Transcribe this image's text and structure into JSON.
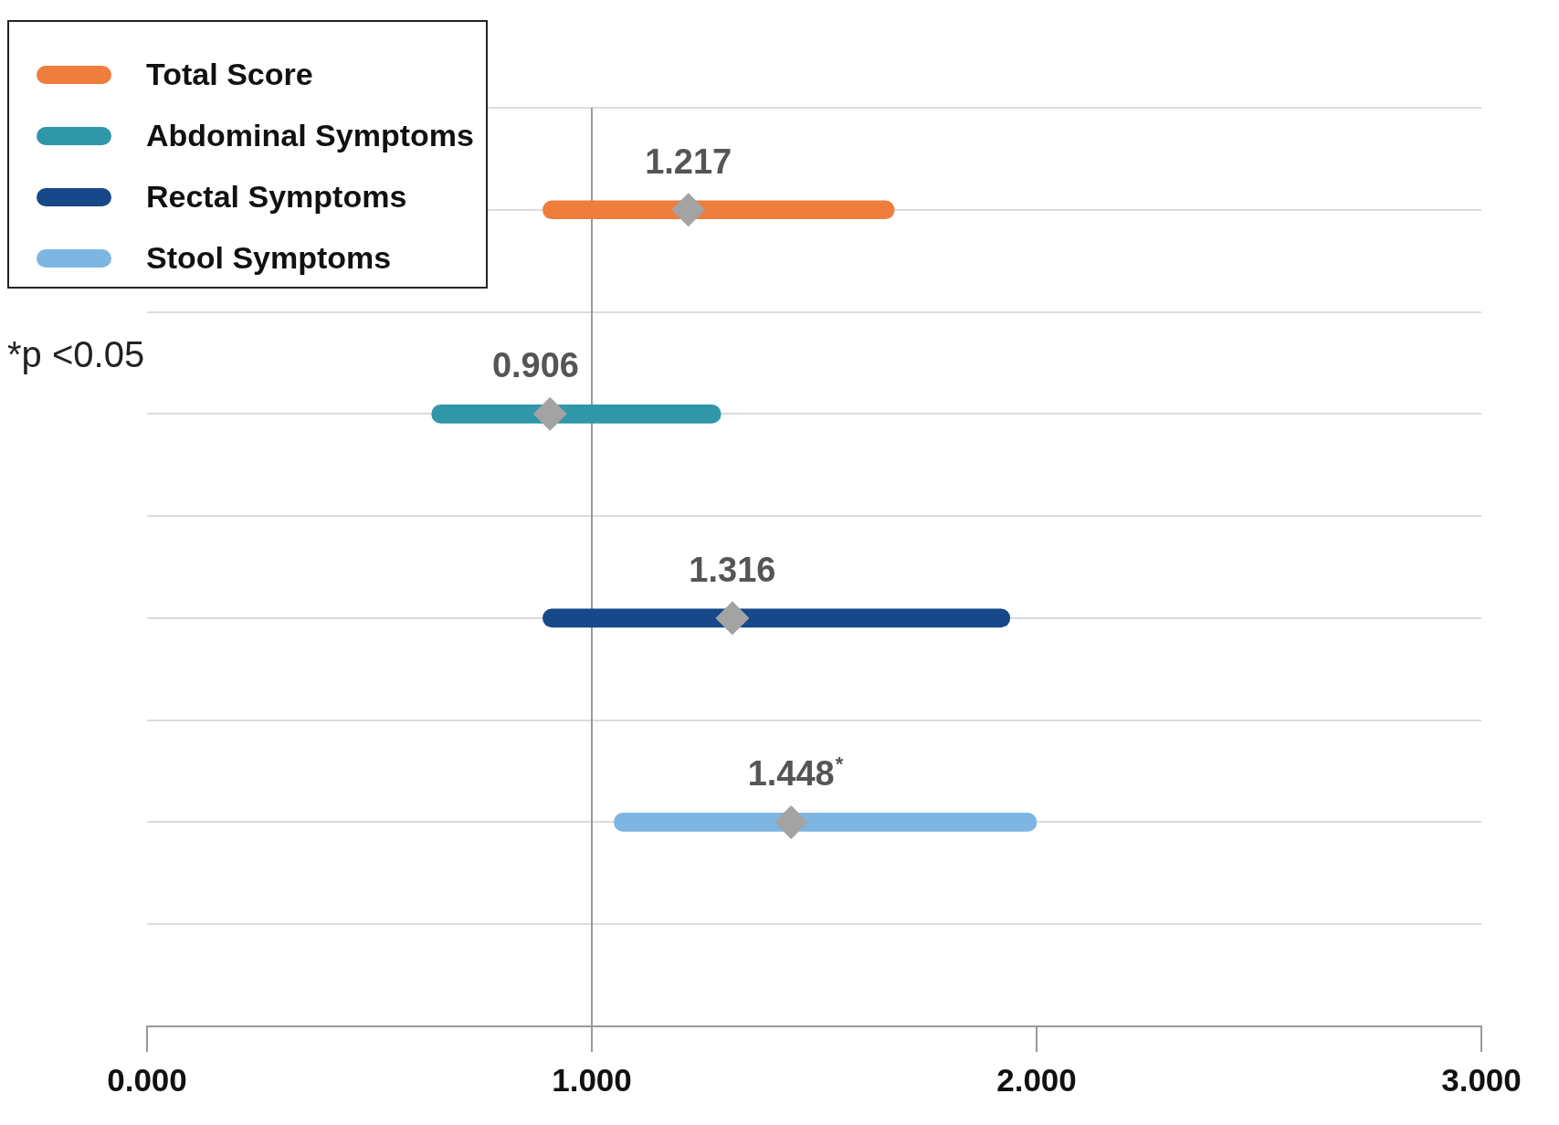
{
  "chart_data": {
    "type": "bar",
    "orientation": "horizontal",
    "categories": [
      null,
      null,
      null,
      null
    ],
    "series": [
      {
        "name": "Total Score",
        "color": "#ef7d3c",
        "values": [
          0.79,
          null,
          null,
          null
        ],
        "base": [
          0.89,
          null,
          null,
          null
        ]
      },
      {
        "name": "Abdominal Symptoms",
        "color": "#3097a8",
        "values": [
          null,
          0.65,
          null,
          null
        ],
        "base": [
          null,
          0.64,
          null,
          null
        ]
      },
      {
        "name": "Rectal Symptoms",
        "color": "#17488a",
        "values": [
          null,
          null,
          1.05,
          null
        ],
        "base": [
          null,
          null,
          0.89,
          null
        ]
      },
      {
        "name": "Stool Symptoms",
        "color": "#7db6e3",
        "values": [
          null,
          null,
          null,
          0.95
        ],
        "base": [
          null,
          null,
          null,
          1.05
        ]
      },
      {
        "type": "scatter",
        "color": "#a3a3a3",
        "values": [
          1.217,
          0.906,
          1.316,
          1.448
        ],
        "value_labels": [
          "1.217",
          "0.906",
          "1.316",
          "1.448$^{*}$"
        ]
      }
    ],
    "xlim": [
      0,
      3
    ],
    "xticks": [
      {
        "value": 0,
        "label": "0.000"
      },
      {
        "value": 1,
        "label": "1.000"
      },
      {
        "value": 2,
        "label": "2.000"
      },
      {
        "value": 3,
        "label": "3.000"
      }
    ],
    "ref_lines": [
      {
        "axis": "x",
        "value": 1,
        "color": "#9a9a9a"
      }
    ],
    "marker": "diamond",
    "grid": "y",
    "legend": "top left",
    "annotations": [
      "*p <0.05"
    ]
  }
}
